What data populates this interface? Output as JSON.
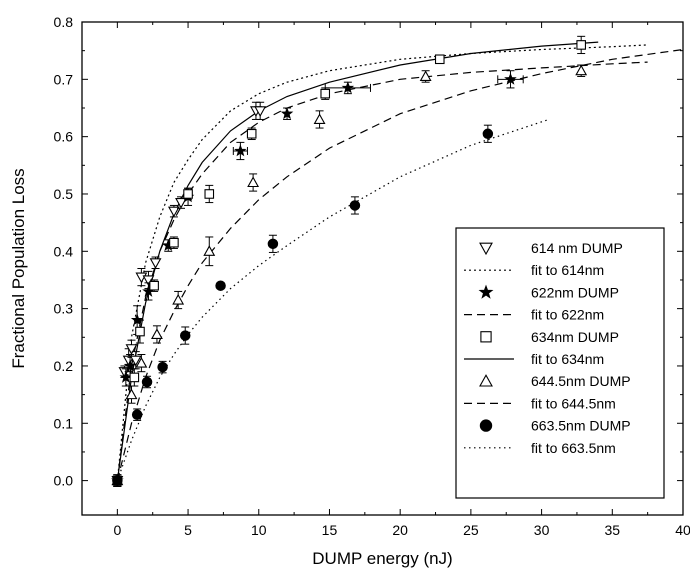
{
  "chart_data": {
    "type": "scatter",
    "title": "",
    "xlabel": "DUMP energy (nJ)",
    "ylabel": "Fractional Population Loss",
    "xlim": [
      -2.5,
      40
    ],
    "ylim": [
      -0.06,
      0.8
    ],
    "xticks": [
      0,
      5,
      10,
      15,
      20,
      25,
      30,
      35,
      40
    ],
    "yticks": [
      0.0,
      0.1,
      0.2,
      0.3,
      0.4,
      0.5,
      0.6,
      0.7,
      0.8
    ],
    "ytick_labels": [
      "0.0",
      "0.1",
      "0.2",
      "0.3",
      "0.4",
      "0.5",
      "0.6",
      "0.7",
      "0.8"
    ],
    "grid": false,
    "legend_position": "lower-right",
    "series": [
      {
        "name": "614 nm DUMP",
        "marker": "triangle-down-open",
        "points": [
          {
            "x": 0,
            "y": 0,
            "yerr": 0.01
          },
          {
            "x": 0.5,
            "y": 0.19,
            "yerr": 0.01
          },
          {
            "x": 0.8,
            "y": 0.21,
            "yerr": 0.02
          },
          {
            "x": 1.0,
            "y": 0.23,
            "yerr": 0.015
          },
          {
            "x": 1.3,
            "y": 0.21,
            "yerr": 0.015
          },
          {
            "x": 1.7,
            "y": 0.355,
            "yerr": 0.015
          },
          {
            "x": 2.2,
            "y": 0.35,
            "yerr": 0.015
          },
          {
            "x": 2.7,
            "y": 0.38,
            "yerr": 0.01
          },
          {
            "x": 4.0,
            "y": 0.47,
            "yerr": 0.01
          },
          {
            "x": 4.5,
            "y": 0.485,
            "yerr": 0.01
          },
          {
            "x": 9.8,
            "y": 0.645,
            "yerr": 0.015
          },
          {
            "x": 10.1,
            "y": 0.645,
            "yerr": 0.015
          }
        ]
      },
      {
        "name": "fit to 614nm",
        "type": "line",
        "style": "dotted",
        "x": [
          0,
          1,
          2,
          3,
          4,
          5,
          6,
          8,
          10,
          12,
          15,
          20,
          25,
          30,
          35,
          37.5
        ],
        "values": [
          0,
          0.25,
          0.38,
          0.46,
          0.52,
          0.56,
          0.595,
          0.645,
          0.675,
          0.695,
          0.715,
          0.735,
          0.745,
          0.752,
          0.757,
          0.76
        ]
      },
      {
        "name": "622nm DUMP",
        "marker": "star",
        "points": [
          {
            "x": 0,
            "y": 0,
            "yerr": 0.01
          },
          {
            "x": 0.6,
            "y": 0.18,
            "yerr": 0.015
          },
          {
            "x": 0.9,
            "y": 0.2,
            "yerr": 0.02
          },
          {
            "x": 1.4,
            "y": 0.28,
            "yerr": 0.025
          },
          {
            "x": 2.2,
            "y": 0.33,
            "yerr": 0.015
          },
          {
            "x": 3.6,
            "y": 0.41,
            "yerr": 0.01
          },
          {
            "x": 5.0,
            "y": 0.495,
            "yerr": 0.015
          },
          {
            "x": 8.7,
            "y": 0.575,
            "yerr": 0.015,
            "xerr": 0.5
          },
          {
            "x": 12.0,
            "y": 0.64,
            "yerr": 0.01
          },
          {
            "x": 16.3,
            "y": 0.685,
            "yerr": 0.01,
            "xerr": 1.6
          },
          {
            "x": 27.8,
            "y": 0.7,
            "yerr": 0.015,
            "xerr": 0.9
          }
        ]
      },
      {
        "name": "fit to 622nm",
        "type": "line",
        "style": "dashed",
        "x": [
          0,
          1,
          2,
          3,
          4,
          5,
          6,
          8,
          10,
          12,
          15,
          20,
          25,
          30,
          35,
          37.5
        ],
        "values": [
          0,
          0.2,
          0.32,
          0.4,
          0.455,
          0.5,
          0.535,
          0.59,
          0.625,
          0.65,
          0.675,
          0.7,
          0.712,
          0.72,
          0.727,
          0.73
        ]
      },
      {
        "name": "634nm DUMP",
        "marker": "square-open",
        "points": [
          {
            "x": 0,
            "y": 0,
            "yerr": 0.01
          },
          {
            "x": 1.2,
            "y": 0.18,
            "yerr": 0.015
          },
          {
            "x": 1.6,
            "y": 0.26,
            "yerr": 0.02
          },
          {
            "x": 2.6,
            "y": 0.34,
            "yerr": 0.01
          },
          {
            "x": 4.0,
            "y": 0.415,
            "yerr": 0.01
          },
          {
            "x": 5.0,
            "y": 0.5,
            "yerr": 0.01
          },
          {
            "x": 6.5,
            "y": 0.5,
            "yerr": 0.015
          },
          {
            "x": 9.5,
            "y": 0.605,
            "yerr": 0.01
          },
          {
            "x": 14.7,
            "y": 0.675,
            "yerr": 0.01
          },
          {
            "x": 22.8,
            "y": 0.735,
            "yerr": 0.005
          },
          {
            "x": 32.8,
            "y": 0.76,
            "yerr": 0.015
          }
        ]
      },
      {
        "name": "fit to 634nm",
        "type": "line",
        "style": "solid",
        "x": [
          0,
          1,
          2,
          3,
          4,
          5,
          6,
          8,
          10,
          12,
          15,
          20,
          25,
          30,
          34
        ],
        "values": [
          0,
          0.18,
          0.31,
          0.4,
          0.465,
          0.515,
          0.555,
          0.61,
          0.645,
          0.67,
          0.695,
          0.725,
          0.745,
          0.758,
          0.765
        ]
      },
      {
        "name": "644.5nm DUMP",
        "marker": "triangle-up-open",
        "points": [
          {
            "x": 0,
            "y": 0,
            "yerr": 0.01
          },
          {
            "x": 1.0,
            "y": 0.15,
            "yerr": 0.015
          },
          {
            "x": 1.7,
            "y": 0.205,
            "yerr": 0.015
          },
          {
            "x": 2.8,
            "y": 0.255,
            "yerr": 0.015
          },
          {
            "x": 4.3,
            "y": 0.315,
            "yerr": 0.015
          },
          {
            "x": 6.5,
            "y": 0.4,
            "yerr": 0.025
          },
          {
            "x": 9.6,
            "y": 0.52,
            "yerr": 0.015
          },
          {
            "x": 14.3,
            "y": 0.63,
            "yerr": 0.015
          },
          {
            "x": 21.8,
            "y": 0.705,
            "yerr": 0.01
          },
          {
            "x": 32.8,
            "y": 0.715,
            "yerr": 0.01
          }
        ]
      },
      {
        "name": "fit to 644.5nm",
        "type": "line",
        "style": "dashed",
        "x": [
          0,
          1,
          2,
          3,
          4,
          5,
          6,
          8,
          10,
          12,
          15,
          20,
          25,
          30,
          35,
          40
        ],
        "values": [
          0,
          0.1,
          0.18,
          0.245,
          0.295,
          0.34,
          0.38,
          0.44,
          0.49,
          0.53,
          0.58,
          0.64,
          0.68,
          0.71,
          0.735,
          0.752
        ]
      },
      {
        "name": "663.5nm DUMP",
        "marker": "circle-filled",
        "points": [
          {
            "x": 0,
            "y": 0,
            "yerr": 0.01
          },
          {
            "x": 1.4,
            "y": 0.115,
            "yerr": 0.01
          },
          {
            "x": 2.1,
            "y": 0.172,
            "yerr": 0.01
          },
          {
            "x": 3.2,
            "y": 0.198,
            "yerr": 0.01
          },
          {
            "x": 4.8,
            "y": 0.253,
            "yerr": 0.015
          },
          {
            "x": 7.3,
            "y": 0.34,
            "yerr": 0.005
          },
          {
            "x": 11.0,
            "y": 0.413,
            "yerr": 0.015
          },
          {
            "x": 16.8,
            "y": 0.48,
            "yerr": 0.015
          },
          {
            "x": 26.2,
            "y": 0.605,
            "yerr": 0.015
          }
        ]
      },
      {
        "name": "fit to 663.5nm",
        "type": "line",
        "style": "sparse-dotted",
        "x": [
          0,
          1,
          2,
          3,
          4,
          5,
          6,
          8,
          10,
          12,
          15,
          20,
          25,
          30.5
        ],
        "values": [
          0,
          0.07,
          0.13,
          0.18,
          0.22,
          0.255,
          0.285,
          0.335,
          0.375,
          0.41,
          0.46,
          0.53,
          0.585,
          0.63
        ]
      }
    ]
  }
}
